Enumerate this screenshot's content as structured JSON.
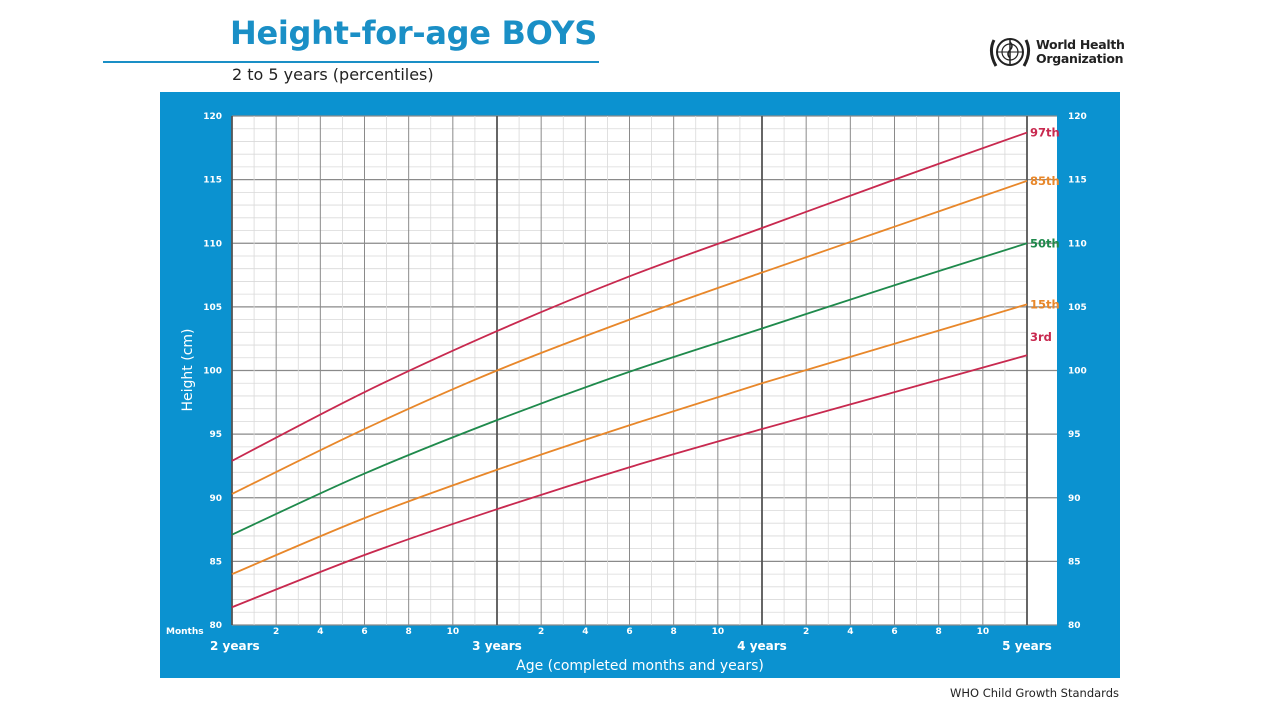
{
  "header": {
    "title": "Height-for-age BOYS",
    "subtitle": "2 to 5 years (percentiles)",
    "logo_line1": "World Health",
    "logo_line2": "Organization",
    "logo_icon": "who-emblem-icon"
  },
  "footer": {
    "text": "WHO Child Growth Standards"
  },
  "colors": {
    "brand_blue": "#1a8fc6",
    "panel_blue": "#0b92d0",
    "p97": "#c8294f",
    "p85": "#e8872a",
    "p50": "#1f8a4c",
    "p15": "#e8872a",
    "p3": "#c8294f"
  },
  "chart_data": {
    "type": "line",
    "title": "Height-for-age BOYS",
    "subtitle": "2 to 5 years (percentiles)",
    "xlabel": "Age (completed months and years)",
    "ylabel": "Height (cm)",
    "xlim": [
      24,
      60
    ],
    "ylim": [
      80,
      120
    ],
    "grid": true,
    "y_ticks": [
      80,
      85,
      90,
      95,
      100,
      105,
      110,
      115,
      120
    ],
    "x_month_ticks_label": "Months",
    "x_month_ticks": [
      "2",
      "4",
      "6",
      "8",
      "10",
      "2",
      "4",
      "6",
      "8",
      "10",
      "2",
      "4",
      "6",
      "8",
      "10"
    ],
    "x_year_labels": [
      "2 years",
      "3 years",
      "4 years",
      "5 years"
    ],
    "legend_position": "right end of lines",
    "x": [
      24,
      30,
      36,
      42,
      48,
      54,
      60
    ],
    "series": [
      {
        "name": "97th",
        "values": [
          92.9,
          98.3,
          103.1,
          107.4,
          111.2,
          115.0,
          118.7
        ]
      },
      {
        "name": "85th",
        "values": [
          90.3,
          95.4,
          100.0,
          104.0,
          107.7,
          111.3,
          114.9
        ]
      },
      {
        "name": "50th",
        "values": [
          87.1,
          91.9,
          96.1,
          99.9,
          103.3,
          106.7,
          110.0
        ]
      },
      {
        "name": "15th",
        "values": [
          84.0,
          88.4,
          92.2,
          95.7,
          99.0,
          102.1,
          105.2
        ]
      },
      {
        "name": "3rd",
        "values": [
          81.4,
          85.5,
          89.1,
          92.4,
          95.4,
          98.3,
          101.2
        ]
      }
    ]
  }
}
